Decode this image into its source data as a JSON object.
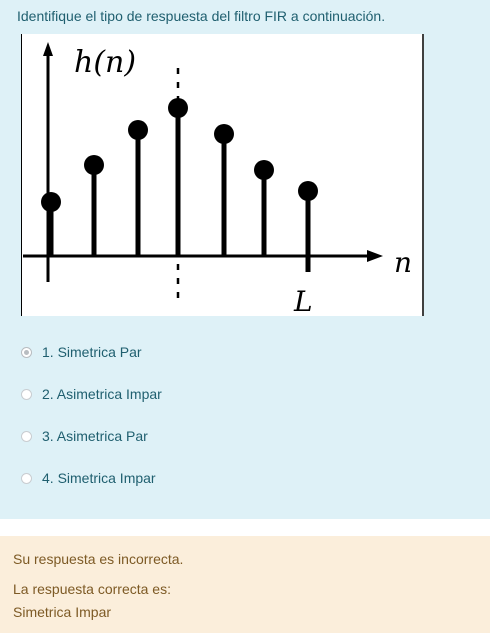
{
  "question": {
    "text": "Identifique el tipo de respuesta del filtro FIR a continuación.",
    "figure": {
      "y_label": "h(n)",
      "x_label": "n",
      "marker_label": "L"
    },
    "options": [
      {
        "label": "1. Simetrica Par",
        "selected": true
      },
      {
        "label": "2. Asimetrica Impar",
        "selected": false
      },
      {
        "label": "3. Asimetrica Par",
        "selected": false
      },
      {
        "label": "4. Simetrica Impar",
        "selected": false
      }
    ]
  },
  "feedback": {
    "result": "Su respuesta es incorrecta.",
    "correct_intro": "La respuesta correcta es:",
    "correct_answer": "Simetrica Impar"
  }
}
